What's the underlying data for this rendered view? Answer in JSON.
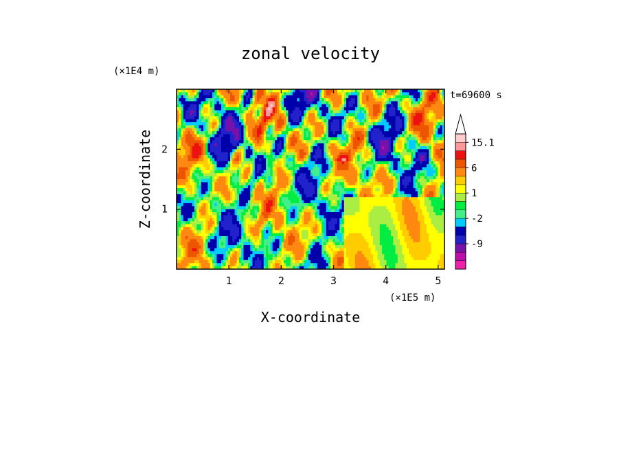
{
  "chart_data": {
    "type": "heatmap",
    "title": "zonal velocity",
    "xlabel": "X-coordinate",
    "ylabel": "Z-coordinate",
    "x_unit": "(×1E5 m)",
    "y_unit": "(×1E4 m)",
    "time_label": "t=69600 s",
    "xlim": [
      0,
      5.12
    ],
    "ylim": [
      0,
      3.0
    ],
    "x_ticks": [
      1,
      2,
      3,
      4,
      5
    ],
    "x_tick_labels": [
      "1",
      "2",
      "3",
      "4",
      "5"
    ],
    "y_ticks": [
      1,
      2
    ],
    "y_tick_labels": [
      "1",
      "2"
    ],
    "colorbar": {
      "levels": [
        -15,
        -12,
        -9,
        -6,
        -3,
        -2,
        -1,
        0,
        1,
        2,
        3,
        6,
        9,
        12,
        15.1
      ],
      "level_labels": [
        "15.1",
        "6",
        "1",
        "-2",
        "-9"
      ],
      "label_values": [
        15.1,
        6,
        1,
        -2,
        -9
      ],
      "colors": [
        "#ee22aa",
        "#bb11aa",
        "#7711aa",
        "#2222cc",
        "#0000aa",
        "#00ccff",
        "#44ee88",
        "#00ee44",
        "#aaee44",
        "#ffff00",
        "#ffcc00",
        "#ff8811",
        "#ee5500",
        "#ee1111",
        "#ff9999",
        "#ffcccc"
      ],
      "extend_max": true
    },
    "grid": {
      "nx": 120,
      "nz": 60,
      "description_values_generated_procedurally": false
    }
  }
}
